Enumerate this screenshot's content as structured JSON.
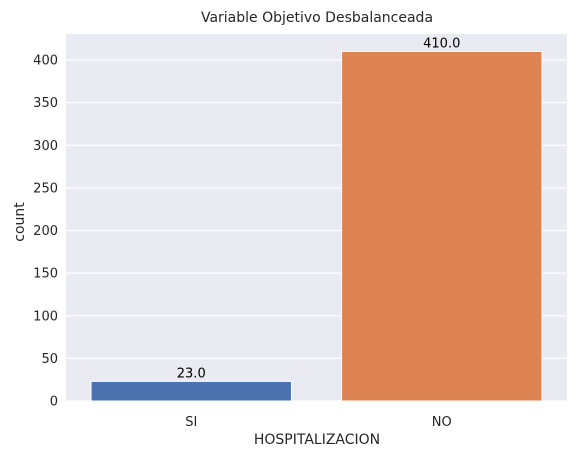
{
  "chart_data": {
    "type": "bar",
    "title": "Variable Objetivo Desbalanceada",
    "xlabel": "HOSPITALIZACION",
    "ylabel": "count",
    "categories": [
      "SI",
      "NO"
    ],
    "values": [
      23.0,
      410.0
    ],
    "data_labels": [
      "23.0",
      "410.0"
    ],
    "ylim": [
      0,
      430.5
    ],
    "yticks": [
      0,
      50,
      100,
      150,
      200,
      250,
      300,
      350,
      400
    ],
    "grid": true,
    "colors": {
      "plot_background": "#eaeaf2",
      "grid": "#ffffff",
      "bars": [
        "#4c72b0",
        "#dd8452"
      ]
    }
  }
}
